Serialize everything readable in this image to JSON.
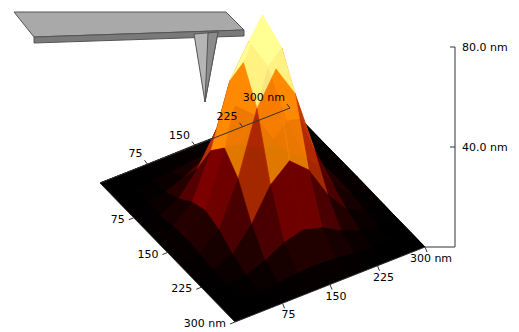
{
  "chart_data": {
    "type": "surface",
    "x": [
      0,
      30,
      60,
      90,
      120,
      150,
      180,
      210,
      240,
      270,
      300
    ],
    "y": [
      0,
      30,
      60,
      90,
      120,
      150,
      180,
      210,
      240,
      270,
      300
    ],
    "z": [
      [
        0,
        0,
        0,
        0.1,
        0.2,
        0.3,
        0.2,
        0.1,
        0,
        0,
        0
      ],
      [
        0,
        0.1,
        0.3,
        0.9,
        1.8,
        2.3,
        1.8,
        0.9,
        0.3,
        0.1,
        0
      ],
      [
        0,
        0.3,
        1.4,
        4.4,
        8.6,
        10.7,
        8.6,
        4.4,
        1.4,
        0.3,
        0
      ],
      [
        0.1,
        0.9,
        4.4,
        13.4,
        26.2,
        32.8,
        26.2,
        13.4,
        4.4,
        0.9,
        0.1
      ],
      [
        0.2,
        1.8,
        8.6,
        26.2,
        51.2,
        64,
        51.2,
        26.2,
        8.6,
        1.8,
        0.2
      ],
      [
        0.3,
        2.3,
        10.7,
        32.8,
        64,
        80,
        64,
        32.8,
        10.7,
        2.3,
        0.3
      ],
      [
        0.2,
        1.8,
        8.6,
        26.2,
        51.2,
        64,
        51.2,
        26.2,
        8.6,
        1.8,
        0.2
      ],
      [
        0.1,
        0.9,
        4.4,
        13.4,
        26.2,
        32.8,
        26.2,
        13.4,
        4.4,
        0.9,
        0.1
      ],
      [
        0,
        0.3,
        1.4,
        4.4,
        8.6,
        10.7,
        8.6,
        4.4,
        1.4,
        0.3,
        0
      ],
      [
        0,
        0.1,
        0.3,
        0.9,
        1.8,
        2.3,
        1.8,
        0.9,
        0.3,
        0.1,
        0
      ],
      [
        0,
        0,
        0,
        0.1,
        0.2,
        0.3,
        0.2,
        0.1,
        0,
        0,
        0
      ]
    ],
    "xlim": [
      0,
      300
    ],
    "ylim": [
      0,
      300
    ],
    "zlim": [
      0,
      80
    ],
    "xticks": [
      75,
      150,
      225,
      {
        "value": 300,
        "label": "300 nm"
      }
    ],
    "yticks": [
      75,
      150,
      225,
      {
        "value": 300,
        "label": "300 nm"
      }
    ],
    "zticks": [
      {
        "value": 40,
        "label": "40.0 nm"
      },
      {
        "value": 80,
        "label": "80.0 nm"
      }
    ]
  }
}
